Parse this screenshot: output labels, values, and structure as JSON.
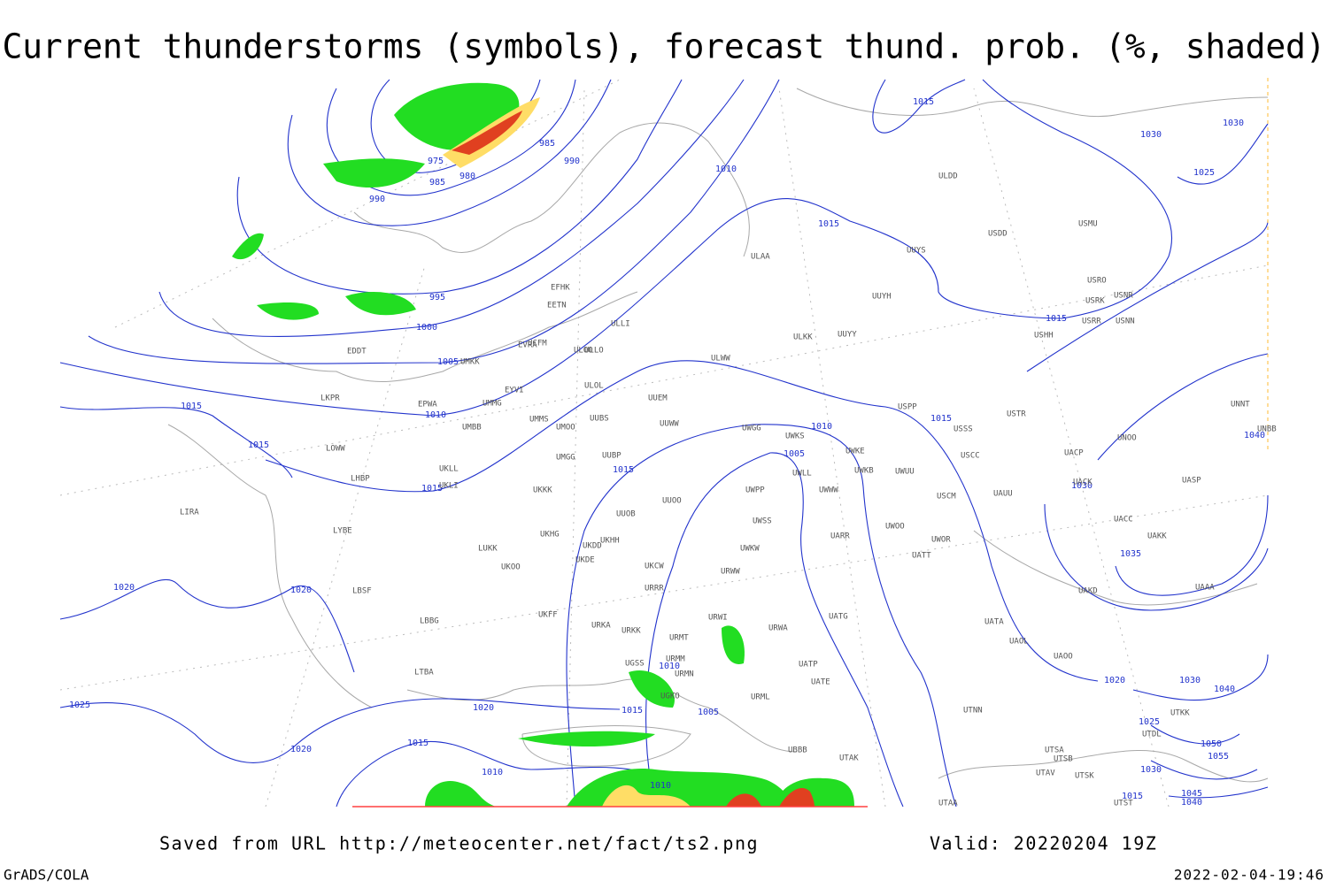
{
  "header": {
    "title": "Current thunderstorms (symbols), forecast thund. prob. (%, shaded)"
  },
  "footer": {
    "source": "Saved from URL http://meteocenter.net/fact/ts2.png",
    "valid": "Valid: 20220204 19Z",
    "software": "GrADS/COLA",
    "timestamp": "2022-02-04-19:46"
  },
  "isobar_labels": [
    1015,
    1030,
    1030,
    1025,
    985,
    990,
    975,
    980,
    985,
    990,
    1010,
    1015,
    995,
    1000,
    1005,
    1015,
    1010,
    1015,
    1015,
    1015,
    1010,
    1005,
    1015,
    1015,
    1030,
    1035,
    1020,
    1020,
    1010,
    1020,
    1030,
    1040,
    1015,
    1005,
    1020,
    1025,
    1025,
    1015,
    1020,
    1010,
    1010,
    1050,
    1055,
    1030,
    1045,
    1040,
    1015,
    1040
  ],
  "stations": [
    "ULDD",
    "USMU",
    "USDD",
    "ULAA",
    "UUYS",
    "USRO",
    "USRK",
    "USNR",
    "UUYH",
    "USRR",
    "USNN",
    "ULLI",
    "ULKK",
    "UUYY",
    "USHH",
    "EVRA",
    "ULOO",
    "EDDT",
    "UMKK",
    "ULWW",
    "EYVI",
    "ULOL",
    "UUEM",
    "EPWA",
    "UMMG",
    "LKPR",
    "UMMS",
    "UMOO",
    "UUBS",
    "UUWW",
    "UWGG",
    "UWKS",
    "USPP",
    "USSS",
    "USTR",
    "UMBB",
    "UMGG",
    "UUBP",
    "UWKE",
    "UWKB",
    "UWUU",
    "USCC",
    "UACP",
    "UNOO",
    "UNNT",
    "UNBB",
    "LOWW",
    "UKLL",
    "UKLI",
    "LHBP",
    "UWLL",
    "UWWW",
    "UWPP",
    "USCM",
    "UAUU",
    "UACK",
    "UASP",
    "UKKK",
    "UUOO",
    "UUOB",
    "LIRA",
    "UWSS",
    "UACC",
    "UAKK",
    "LYBE",
    "UKHH",
    "UKHG",
    "UKDD",
    "UWOO",
    "UARR",
    "UWOR",
    "LUKK",
    "UKDE",
    "UWKW",
    "UATT",
    "UKOO",
    "UKCW",
    "URWW",
    "LBSF",
    "URRR",
    "UAKD",
    "UAAA",
    "UKFF",
    "URWI",
    "UATG",
    "LBBG",
    "URKA",
    "URKK",
    "URWA",
    "UATA",
    "UAOL",
    "URMT",
    "UAOO",
    "URMM",
    "UATP",
    "UGSS",
    "URMN",
    "UATE",
    "LTBA",
    "URML",
    "UGKO",
    "UTKK",
    "UTNN",
    "UBBB",
    "UTAK",
    "UTSA",
    "UTSB",
    "UTAV",
    "UTSK",
    "UTAA",
    "UTST",
    "UTDL",
    "EFHK",
    "EETN",
    "ULLO",
    "UCFM"
  ]
}
